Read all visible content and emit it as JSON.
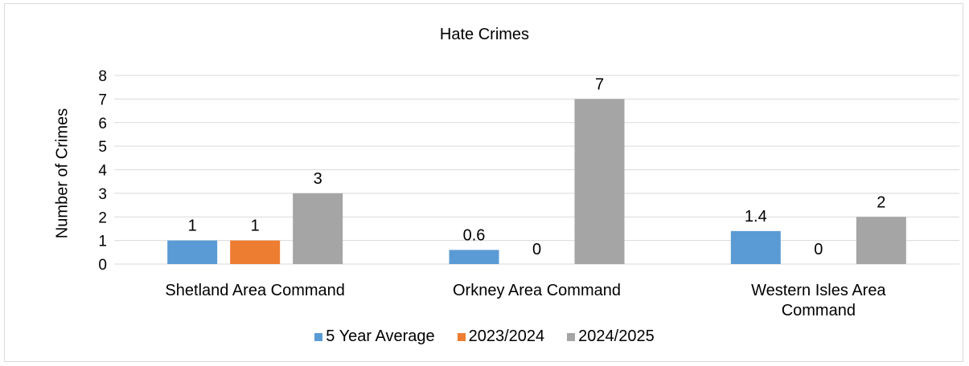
{
  "chart_data": {
    "type": "bar",
    "title": "Hate Crimes",
    "ylabel": "Number of Crimes",
    "xlabel": "",
    "ylim": [
      0,
      8
    ],
    "yticks": [
      0,
      1,
      2,
      3,
      4,
      5,
      6,
      7,
      8
    ],
    "grid": true,
    "legend": "bottom",
    "categories": [
      [
        "Shetland Area Command"
      ],
      [
        "Orkney Area Command"
      ],
      [
        "Western Isles Area",
        "Command"
      ]
    ],
    "series": [
      {
        "name": "5 Year Average",
        "color": "#5b9bd5",
        "values": [
          1,
          0.6,
          1.4
        ],
        "labels": [
          "1",
          "0.6",
          "1.4"
        ]
      },
      {
        "name": "2023/2024",
        "color": "#ed7d31",
        "values": [
          1,
          0,
          0
        ],
        "labels": [
          "1",
          "0",
          "0"
        ]
      },
      {
        "name": "2024/2025",
        "color": "#a5a5a5",
        "values": [
          3,
          7,
          2
        ],
        "labels": [
          "3",
          "7",
          "2"
        ]
      }
    ]
  }
}
